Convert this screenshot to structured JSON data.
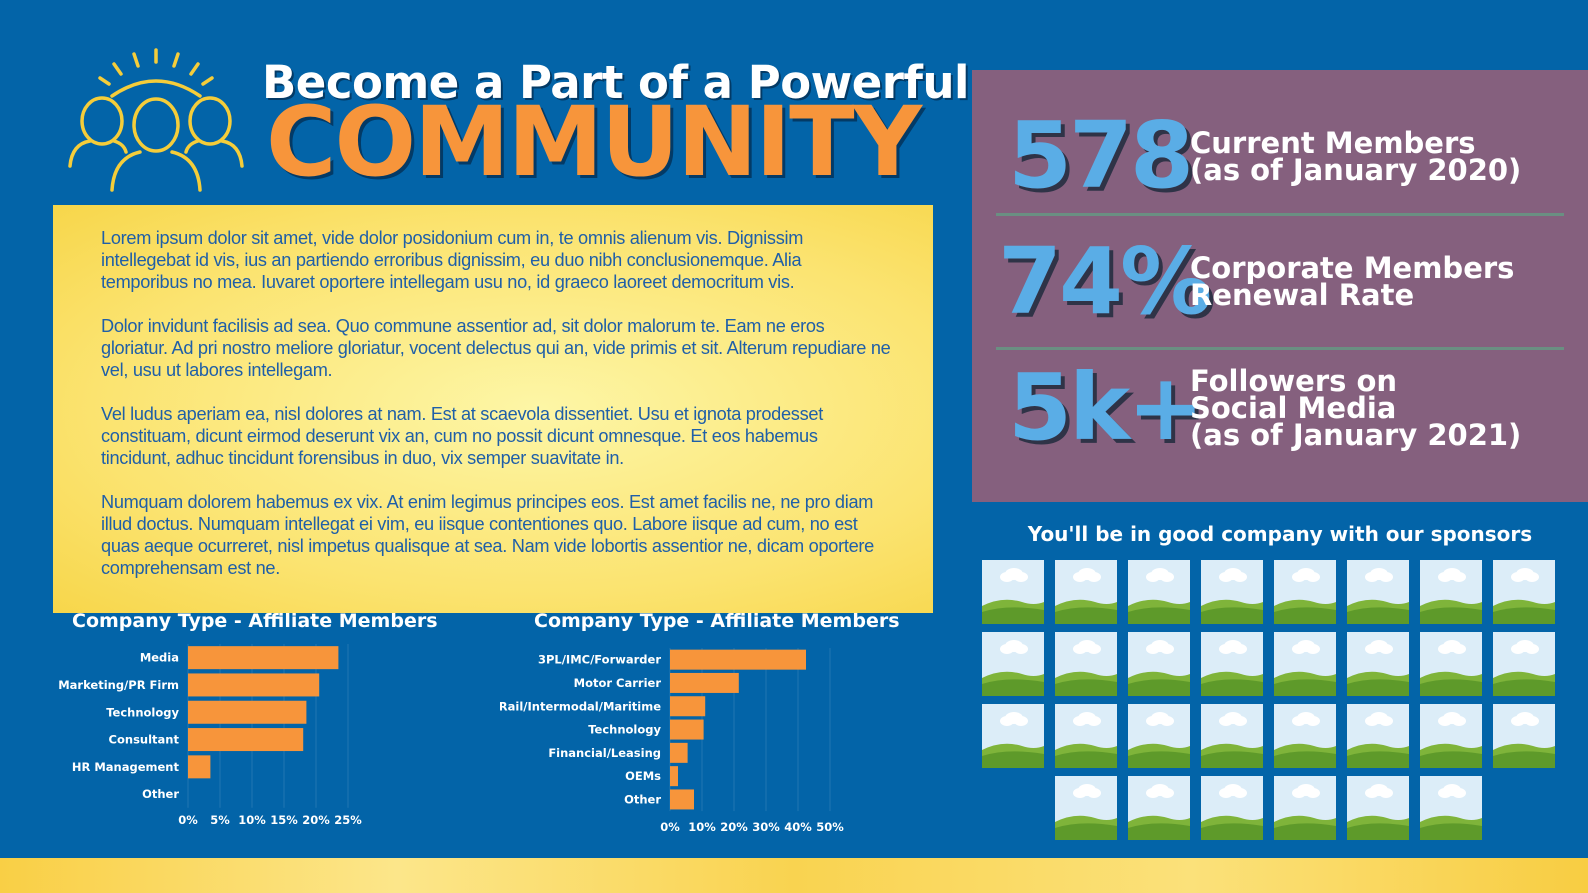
{
  "header": {
    "title_line1": "Become a Part of a Powerful",
    "title_line2": "COMMUNITY",
    "logo_icon": "community-people-sun-icon"
  },
  "body_text": {
    "paragraphs": [
      "Lorem ipsum dolor sit amet, vide dolor posidonium cum in, te omnis alienum vis. Dignissim intellegebat id vis, ius an partiendo erroribus dignissim, eu duo nibh conclusionemque. Alia temporibus no mea. Iuvaret oportere intellegam usu no, id graeco laoreet democritum vis.",
      "Dolor invidunt facilisis ad sea. Quo commune assentior ad, sit dolor malorum te. Eam ne eros gloriatur. Ad pri nostro meliore gloriatur, vocent delectus qui an, vide primis et sit. Alterum repudiare ne vel, usu ut labores intellegam.",
      "Vel ludus aperiam ea, nisl dolores at nam. Est at scaevola dissentiet. Usu et ignota prodesset constituam, dicunt eirmod deserunt vix an, cum no possit dicunt omnesque. Et eos habemus tincidunt, adhuc tincidunt forensibus in duo, vix semper suavitate in.",
      "Numquam dolorem habemus ex vix. At enim legimus principes eos. Est amet facilis ne, ne pro diam illud doctus. Numquam intellegat ei vim, eu iisque contentiones quo. Labore iisque ad cum, no est quas aeque ocurreret, nisl impetus qualisque at sea. Nam vide lobortis assentior ne, dicam oportere comprehensam est ne."
    ]
  },
  "stats": [
    {
      "value": "578",
      "label_lines": [
        "Current Members",
        "(as of January 2020)"
      ]
    },
    {
      "value": "74%",
      "label_lines": [
        "Corporate Members",
        "Renewal Rate"
      ]
    },
    {
      "value": "5k+",
      "label_lines": [
        "Followers on",
        "Social Media",
        "(as of January 2021)"
      ]
    }
  ],
  "sponsors": {
    "title": "You'll be in good company with our sponsors",
    "placeholder_icon": "image-placeholder-icon",
    "rows": [
      8,
      8,
      8,
      6
    ]
  },
  "colors": {
    "background": "#0364a8",
    "accent_orange": "#f7953b",
    "stats_panel": "#85607e",
    "stat_number": "#5aade6",
    "text_panel": "#fbe36f",
    "body_text": "#1f5fa8"
  },
  "chart_data": [
    {
      "type": "bar",
      "orientation": "horizontal",
      "title": "Company Type - Affiliate Members",
      "categories": [
        "Media",
        "Marketing/PR Firm",
        "Technology",
        "Consultant",
        "HR Management",
        "Other"
      ],
      "values": [
        23.5,
        20.5,
        18.5,
        18,
        3.5,
        0
      ],
      "xlim": [
        0,
        25
      ],
      "ticks": [
        0,
        5,
        10,
        15,
        20,
        25
      ],
      "tick_labels": [
        "0%",
        "5%",
        "10%",
        "15%",
        "20%",
        "25%"
      ],
      "bar_color": "#f7953b",
      "grid": true
    },
    {
      "type": "bar",
      "orientation": "horizontal",
      "title": "Company Type - Affiliate Members",
      "categories": [
        "3PL/IMC/Forwarder",
        "Motor Carrier",
        "Rail/Intermodal/Maritime",
        "Technology",
        "Financial/Leasing",
        "OEMs",
        "Other"
      ],
      "values": [
        42.5,
        21.5,
        11,
        10.5,
        5.5,
        2.5,
        7.5
      ],
      "xlim": [
        0,
        50
      ],
      "ticks": [
        0,
        10,
        20,
        30,
        40,
        50
      ],
      "tick_labels": [
        "0%",
        "10%",
        "20%",
        "30%",
        "40%",
        "50%"
      ],
      "bar_color": "#f7953b",
      "grid": true
    }
  ]
}
